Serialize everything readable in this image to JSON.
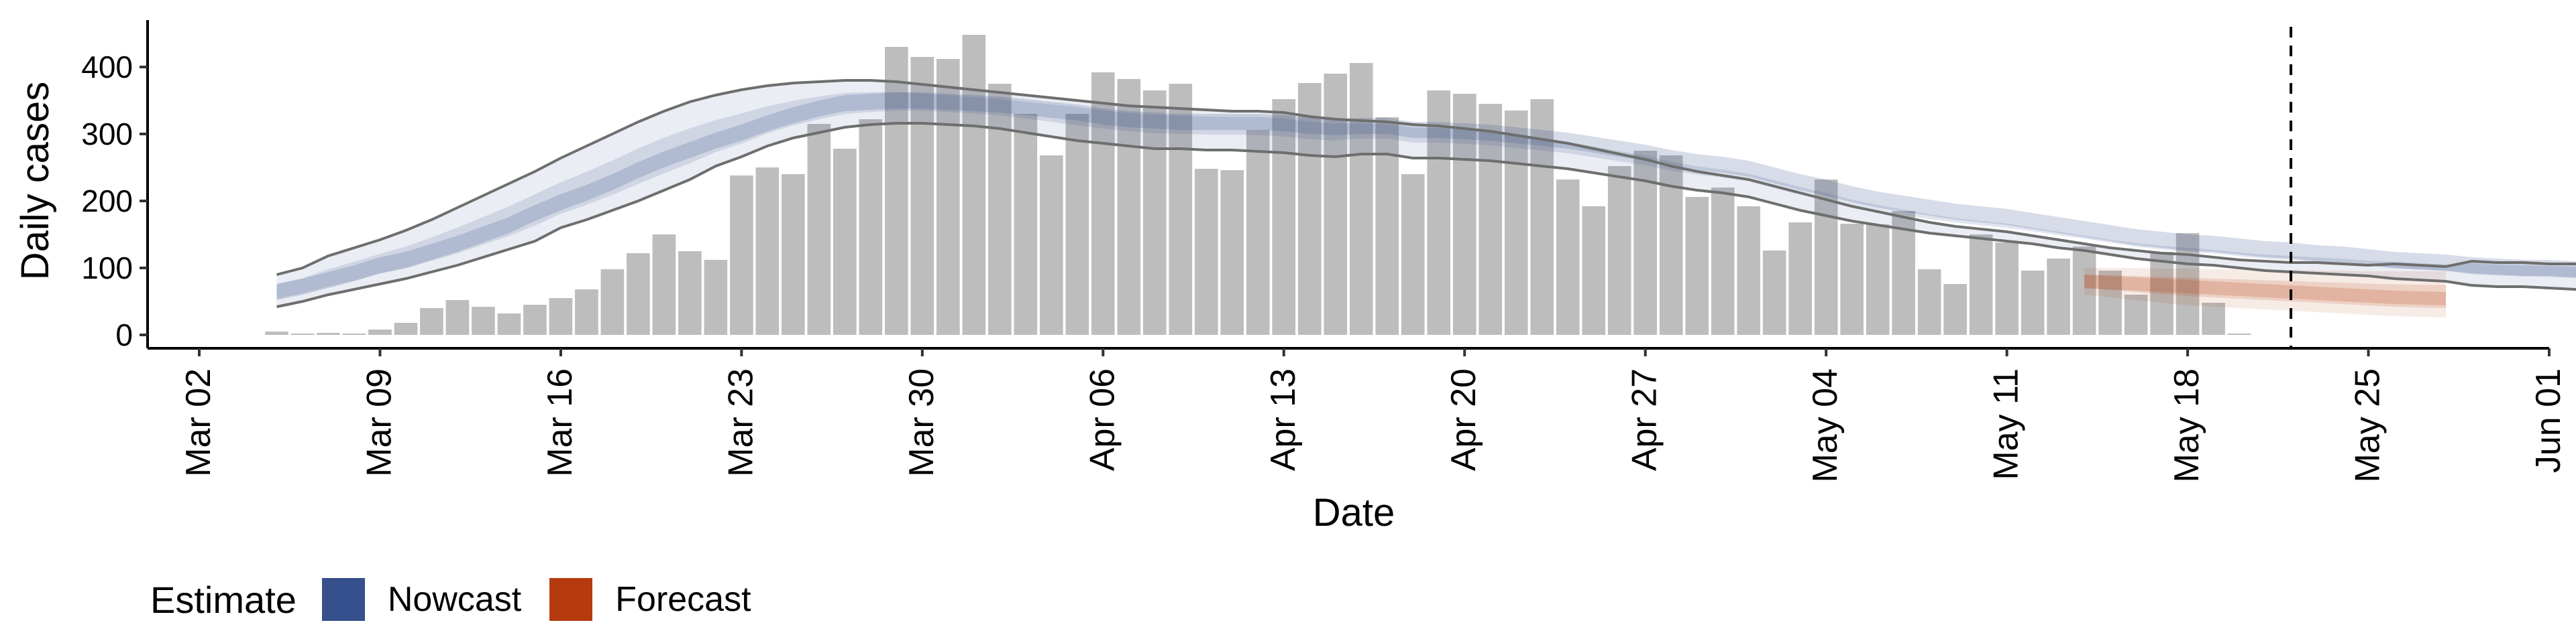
{
  "chart_data": {
    "type": "bar",
    "title": "",
    "xlabel": "Date",
    "ylabel": "Daily cases",
    "ylim": [
      -20,
      470
    ],
    "yticks": [
      0,
      100,
      200,
      300,
      400
    ],
    "x_ticks": [
      "2020-03-02",
      "2020-03-09",
      "2020-03-16",
      "2020-03-23",
      "2020-03-30",
      "2020-04-06",
      "2020-04-13",
      "2020-04-20",
      "2020-04-27",
      "2020-05-04",
      "2020-05-11",
      "2020-05-18",
      "2020-05-25",
      "2020-06-01"
    ],
    "x_tick_labels": [
      "Mar 02",
      "Mar 09",
      "Mar 16",
      "Mar 23",
      "Mar 30",
      "Apr 06",
      "Apr 13",
      "Apr 20",
      "Apr 27",
      "May 04",
      "May 11",
      "May 18",
      "May 25",
      "Jun 01"
    ],
    "xlim": [
      "2020-02-29",
      "2020-06-01"
    ],
    "estimate_date": "2020-05-22",
    "bars": {
      "start": "2020-03-05",
      "values": [
        5,
        2,
        3,
        2,
        8,
        18,
        40,
        52,
        42,
        32,
        45,
        55,
        68,
        98,
        122,
        150,
        125,
        112,
        238,
        250,
        240,
        315,
        278,
        322,
        430,
        415,
        412,
        448,
        375,
        330,
        268,
        330,
        392,
        382,
        365,
        375,
        248,
        246,
        306,
        352,
        376,
        390,
        406,
        325,
        240,
        365,
        360,
        345,
        335,
        352,
        232,
        192,
        252,
        275,
        268,
        206,
        220,
        192,
        126,
        168,
        232,
        166,
        165,
        185,
        98,
        76,
        150,
        138,
        96,
        114,
        132,
        96,
        60,
        124,
        152,
        48,
        2
      ]
    },
    "nowcast": {
      "start": "2020-03-05",
      "mid": [
        64,
        72,
        82,
        92,
        104,
        112,
        124,
        136,
        150,
        164,
        182,
        198,
        212,
        228,
        246,
        262,
        276,
        290,
        302,
        316,
        328,
        338,
        346,
        348,
        350,
        350,
        348,
        346,
        344,
        340,
        336,
        332,
        326,
        322,
        320,
        318,
        318,
        318,
        318,
        316,
        312,
        310,
        312,
        312,
        306,
        306,
        304,
        302,
        298,
        294,
        290,
        284,
        278,
        272,
        264,
        258,
        254,
        248,
        238,
        228,
        220,
        210,
        202,
        196,
        190,
        184,
        180,
        176,
        170,
        164,
        158,
        152,
        146,
        142,
        138,
        136,
        132,
        128,
        126,
        122,
        120,
        116,
        112,
        110,
        108,
        104,
        102,
        100,
        100,
        98,
        96,
        96
      ],
      "upper": [
        90,
        100,
        118,
        130,
        142,
        156,
        172,
        190,
        208,
        226,
        244,
        264,
        282,
        300,
        318,
        334,
        348,
        358,
        366,
        372,
        376,
        378,
        380,
        380,
        378,
        374,
        370,
        366,
        362,
        358,
        354,
        350,
        346,
        342,
        340,
        338,
        336,
        334,
        334,
        332,
        326,
        322,
        320,
        318,
        314,
        312,
        308,
        304,
        298,
        292,
        286,
        278,
        270,
        262,
        252,
        244,
        238,
        232,
        222,
        212,
        202,
        192,
        184,
        176,
        168,
        162,
        158,
        154,
        148,
        142,
        136,
        130,
        126,
        122,
        120,
        116,
        112,
        110,
        108,
        108,
        106,
        104,
        106,
        104,
        102,
        110,
        108,
        108,
        106,
        106,
        106,
        104
      ],
      "lower": [
        42,
        50,
        60,
        68,
        76,
        84,
        94,
        104,
        116,
        128,
        140,
        160,
        172,
        186,
        200,
        216,
        232,
        252,
        266,
        282,
        294,
        302,
        310,
        314,
        316,
        316,
        314,
        312,
        308,
        302,
        296,
        290,
        286,
        282,
        278,
        278,
        276,
        276,
        274,
        272,
        268,
        266,
        270,
        270,
        264,
        264,
        262,
        260,
        256,
        252,
        248,
        242,
        236,
        230,
        222,
        216,
        212,
        206,
        196,
        186,
        178,
        170,
        164,
        158,
        152,
        148,
        144,
        140,
        136,
        130,
        126,
        120,
        114,
        110,
        106,
        104,
        100,
        96,
        94,
        92,
        90,
        88,
        84,
        82,
        80,
        74,
        72,
        72,
        70,
        68,
        68,
        66
      ]
    },
    "forecast": {
      "start": "2020-05-14",
      "mid": [
        80,
        78,
        76,
        74,
        72,
        70,
        68,
        66,
        64,
        62,
        60,
        58,
        56,
        55,
        54
      ],
      "upper": [
        100,
        100,
        100,
        99,
        99,
        98,
        98,
        97,
        97,
        96,
        96,
        95,
        95,
        95,
        95
      ],
      "lower": [
        60,
        56,
        52,
        48,
        44,
        42,
        40,
        38,
        36,
        34,
        32,
        30,
        28,
        27,
        26
      ]
    },
    "colors": {
      "bar": "#bdbdbd",
      "nowcast": "#35508c",
      "forecast": "#b53a0e",
      "bound_line": "#6e6e6e"
    },
    "legend": {
      "title": "Estimate",
      "placement": "bottom-left",
      "entries": [
        {
          "label": "Nowcast",
          "color": "#35508c"
        },
        {
          "label": "Forecast",
          "color": "#b53a0e"
        }
      ]
    },
    "grid": false
  }
}
